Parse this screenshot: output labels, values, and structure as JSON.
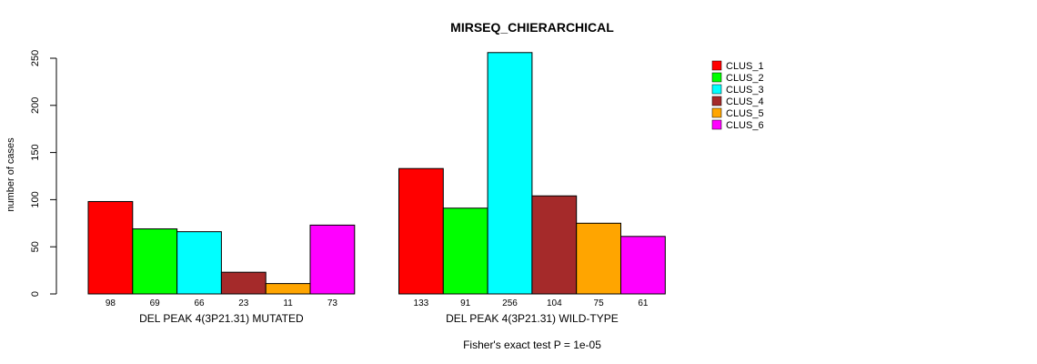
{
  "chart_data": {
    "type": "bar",
    "title": "MIRSEQ_CHIERARCHICAL",
    "ylabel": "number of cases",
    "ylim": [
      0,
      256
    ],
    "yticks": [
      0,
      50,
      100,
      150,
      200,
      250
    ],
    "footnote": "Fisher's exact test P = 1e-05",
    "series_names": [
      "CLUS_1",
      "CLUS_2",
      "CLUS_3",
      "CLUS_4",
      "CLUS_5",
      "CLUS_6"
    ],
    "colors": [
      "#ff0000",
      "#00ff00",
      "#00ffff",
      "#a52a2a",
      "#ffa500",
      "#ff00ff"
    ],
    "groups": [
      {
        "name": "DEL PEAK  4(3P21.31) MUTATED",
        "values": [
          98,
          69,
          66,
          23,
          11,
          73
        ]
      },
      {
        "name": "DEL PEAK  4(3P21.31) WILD-TYPE",
        "values": [
          133,
          91,
          256,
          104,
          75,
          61
        ]
      }
    ],
    "legend_position": "top-right",
    "grid": false
  }
}
